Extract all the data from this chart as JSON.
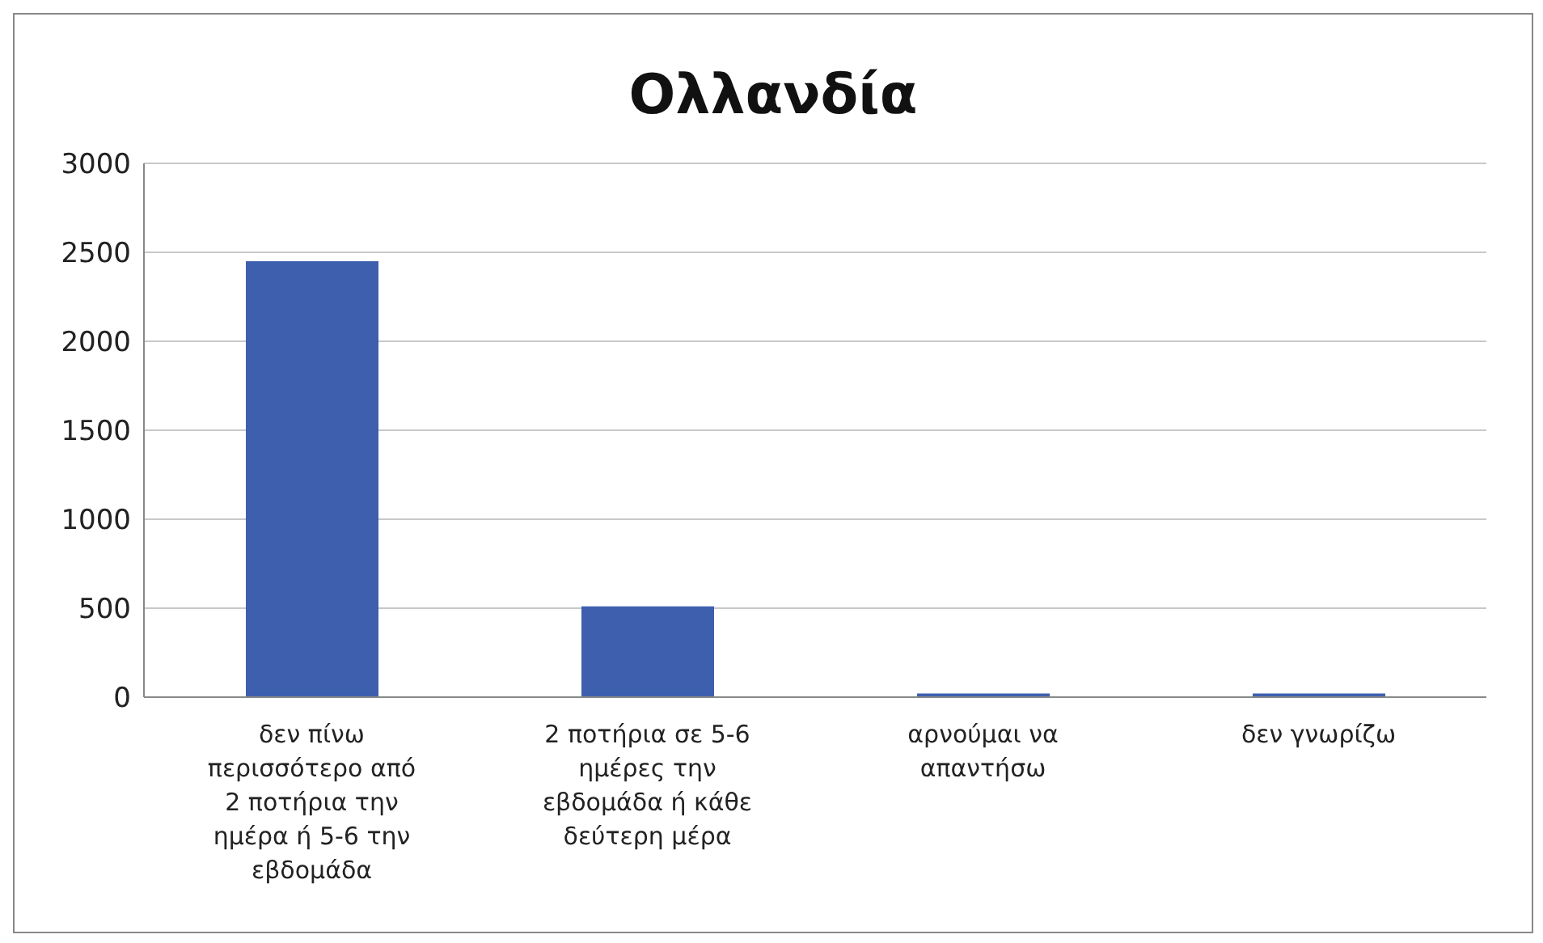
{
  "chart_data": {
    "type": "bar",
    "title": "Ολλανδία",
    "categories": [
      "δεν πίνω περισσότερο από 2 ποτήρια την ημέρα ή 5-6 την εβδομάδα",
      "2 ποτήρια σε 5-6 ημέρες την εβδομάδα ή κάθε δεύτερη μέρα",
      "αρνούμαι να απαντήσω",
      "δεν γνωρίζω"
    ],
    "values": [
      2450,
      510,
      20,
      20
    ],
    "color": "#3d5fae",
    "ylim": [
      0,
      3000
    ],
    "yticks": [
      0,
      500,
      1000,
      1500,
      2000,
      2500,
      3000
    ],
    "grid": "y",
    "legend": false
  }
}
